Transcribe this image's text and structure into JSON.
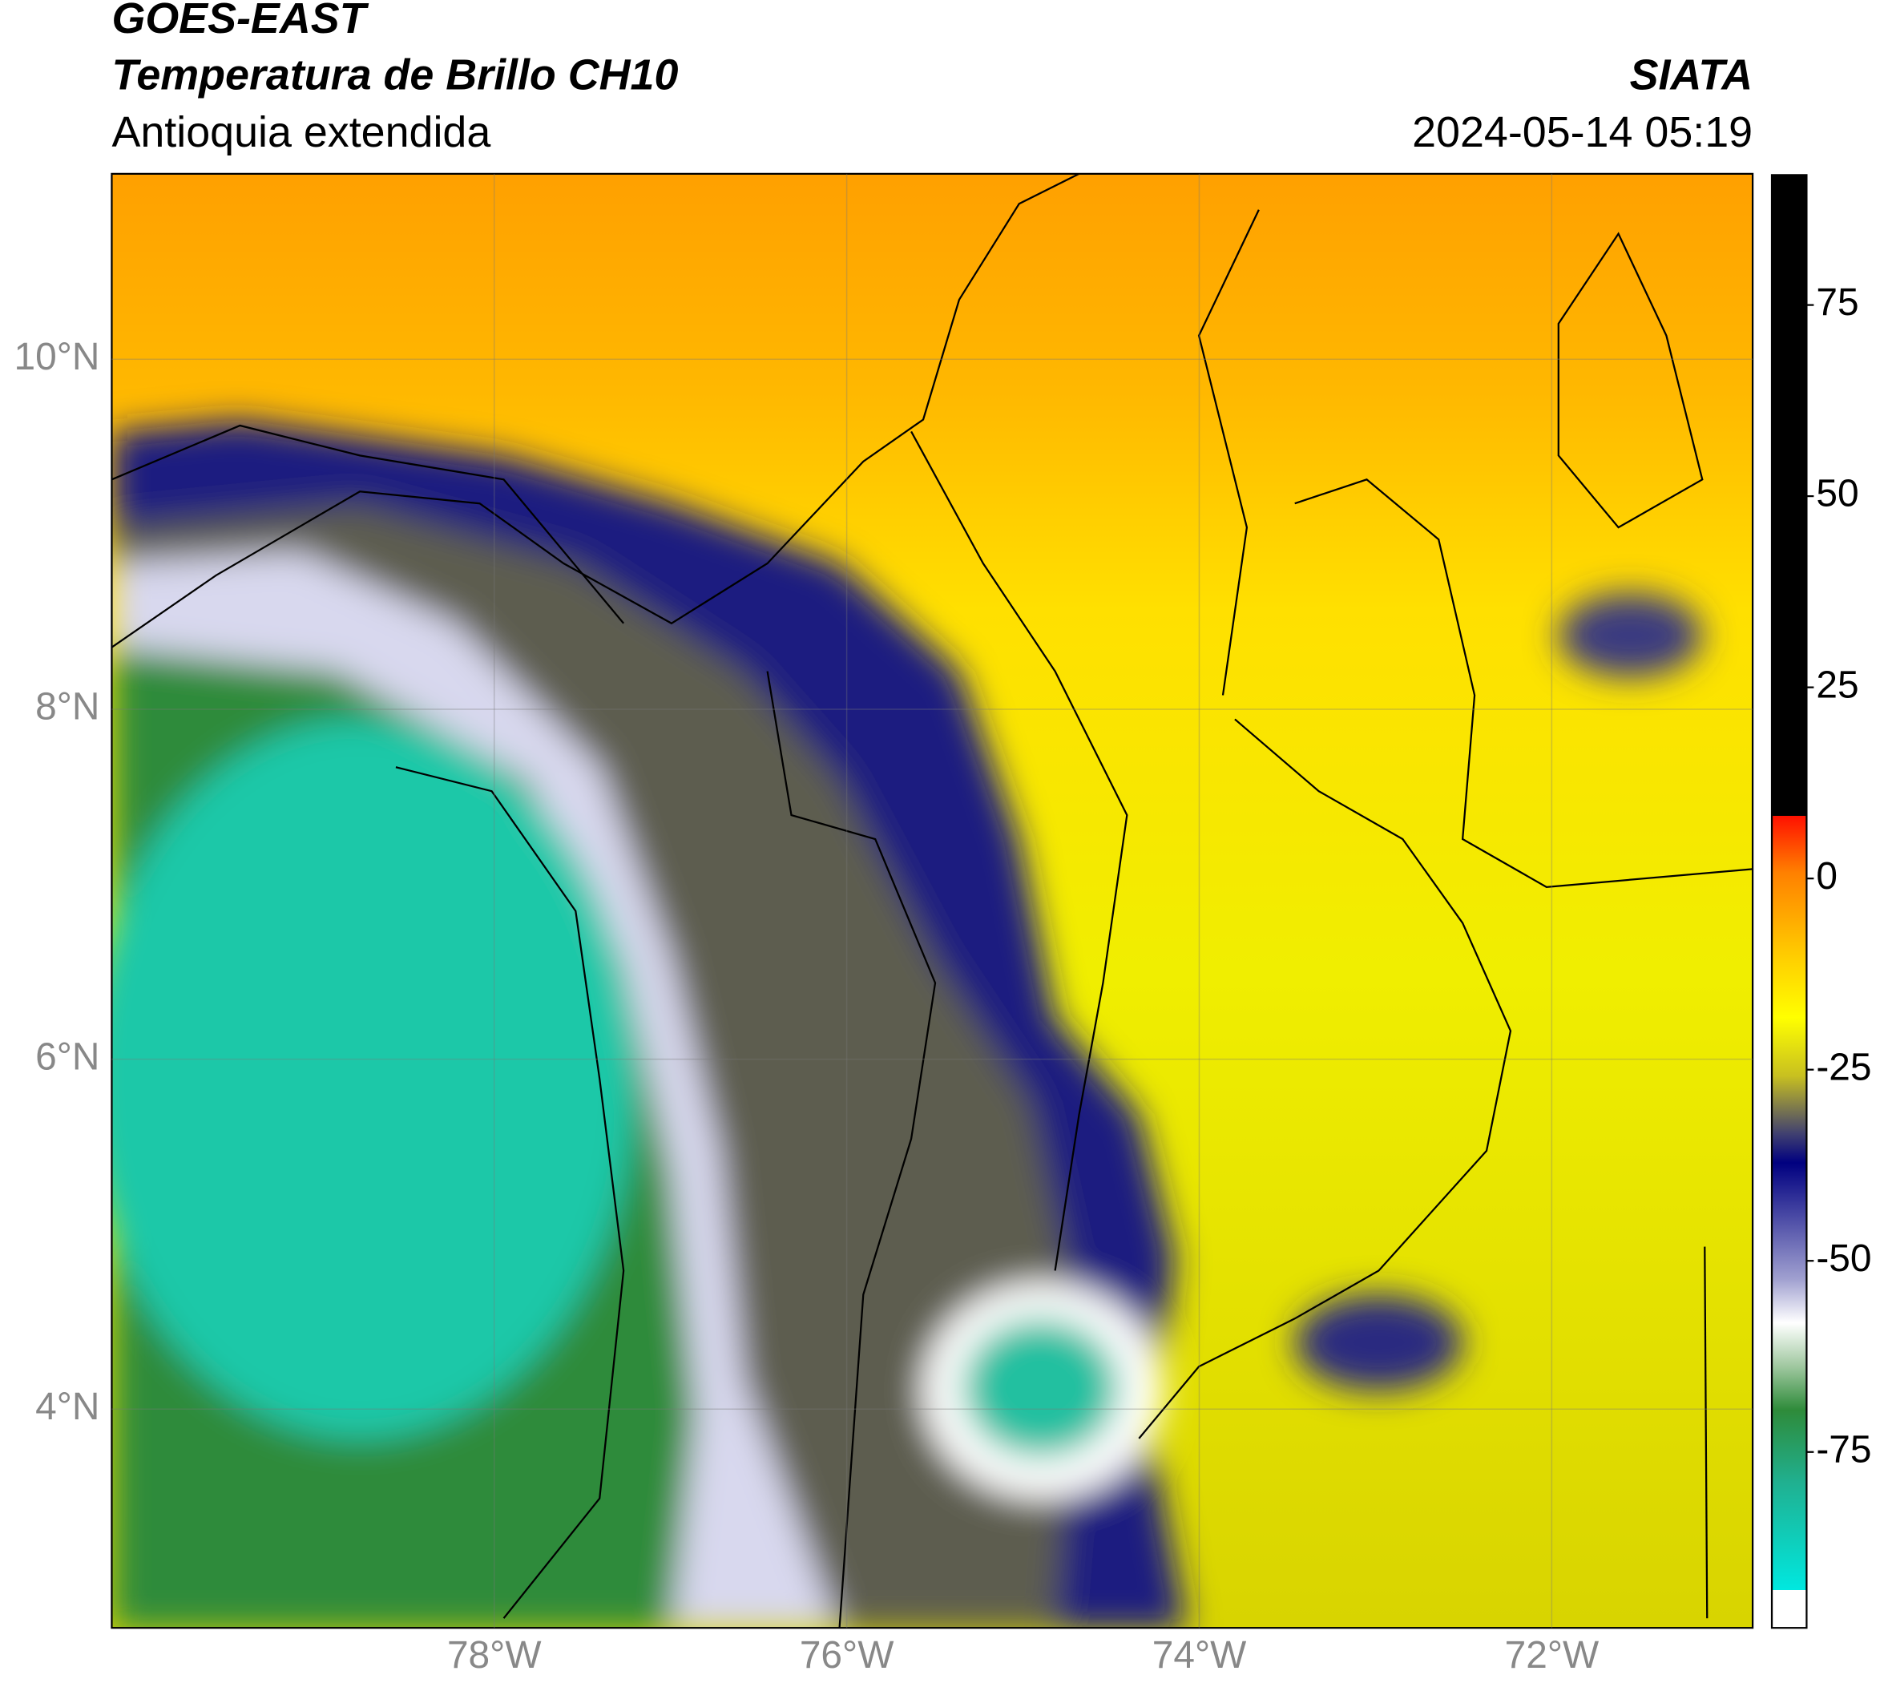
{
  "header": {
    "satellite": "GOES-EAST",
    "product": "Temperatura de Brillo CH10",
    "region": "Antioquia extendida",
    "source": "SIATA",
    "timestamp": "2024-05-14 05:19"
  },
  "map": {
    "lonlim": [
      -80.17,
      -70.86
    ],
    "latlim": [
      2.75,
      11.06
    ],
    "grid": true,
    "lat_ticks": [
      {
        "value": 10,
        "label": "10°N"
      },
      {
        "value": 8,
        "label": "8°N"
      },
      {
        "value": 6,
        "label": "6°N"
      },
      {
        "value": 4,
        "label": "4°N"
      }
    ],
    "lon_ticks": [
      {
        "value": -78,
        "label": "78°W"
      },
      {
        "value": -76,
        "label": "76°W"
      },
      {
        "value": -74,
        "label": "74°W"
      },
      {
        "value": -72,
        "label": "72°W"
      }
    ]
  },
  "colorbar": {
    "range": [
      -98,
      92
    ],
    "ticks": [
      75,
      50,
      25,
      0,
      -25,
      -50,
      -75
    ]
  }
}
